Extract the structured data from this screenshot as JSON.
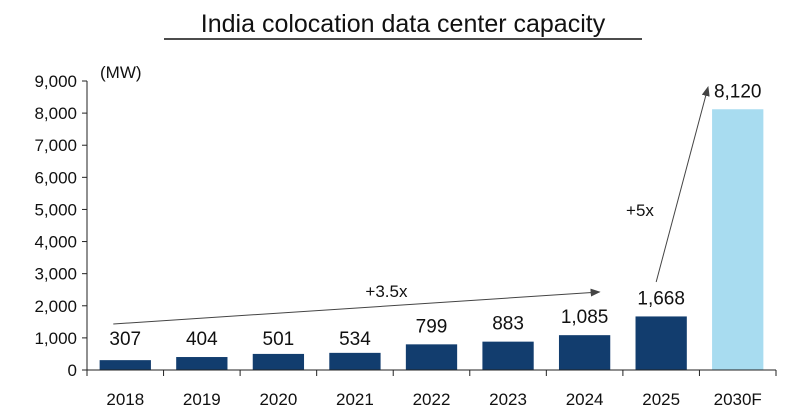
{
  "chart_data": {
    "type": "bar",
    "title": "India colocation data center capacity",
    "ylabel": "(MW)",
    "xlabel": "",
    "categories": [
      "2018",
      "2019",
      "2020",
      "2021",
      "2022",
      "2023",
      "2024",
      "2025",
      "2030F"
    ],
    "values": [
      307,
      404,
      501,
      534,
      799,
      883,
      1085,
      1668,
      8120
    ],
    "data_labels": [
      "307",
      "404",
      "501",
      "534",
      "799",
      "883",
      "1,085",
      "1,668",
      "8,120"
    ],
    "ylim": [
      0,
      9000
    ],
    "yticks": [
      0,
      1000,
      2000,
      3000,
      4000,
      5000,
      6000,
      7000,
      8000,
      9000
    ],
    "ytick_labels": [
      "0",
      "1,000",
      "2,000",
      "3,000",
      "4,000",
      "5,000",
      "6,000",
      "7,000",
      "8,000",
      "9,000"
    ],
    "grid": false,
    "colors": {
      "actual": "#123d6e",
      "forecast": "#a8dcf0",
      "axis": "#222222",
      "text": "#111111"
    },
    "annotations": [
      {
        "text": "+3.5x",
        "from_category": "2018",
        "to_category": "2024"
      },
      {
        "text": "+5x",
        "from_category": "2025",
        "to_category": "2030F"
      }
    ]
  }
}
